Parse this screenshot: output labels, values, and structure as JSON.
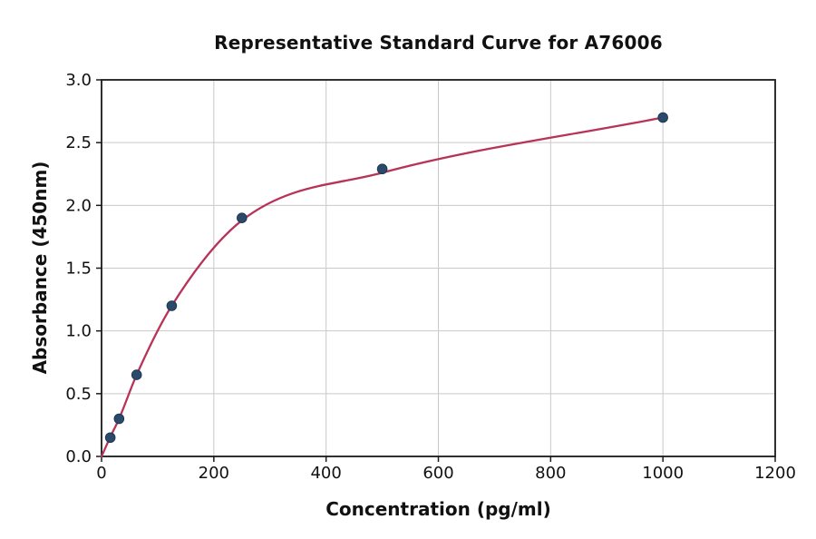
{
  "figure": {
    "background": "#ffffff"
  },
  "chart_data": {
    "type": "scatter",
    "title": "Representative Standard Curve for A76006",
    "xlabel": "Concentration (pg/ml)",
    "ylabel": "Absorbance (450nm)",
    "xlim": [
      0,
      1200
    ],
    "ylim": [
      0,
      3.0
    ],
    "xticks": {
      "values": [
        0,
        200,
        400,
        600,
        800,
        1000,
        1200
      ],
      "labels": [
        "0",
        "200",
        "400",
        "600",
        "800",
        "1000",
        "1200"
      ]
    },
    "yticks": {
      "values": [
        0,
        0.5,
        1.0,
        1.5,
        2.0,
        2.5,
        3.0
      ],
      "labels": [
        "0.0",
        "0.5",
        "1.0",
        "1.5",
        "2.0",
        "2.5",
        "3.0"
      ]
    },
    "grid": true,
    "legend": "none",
    "series": [
      {
        "name": "standard-points",
        "kind": "scatter",
        "x": [
          15.6,
          31.2,
          62.5,
          125,
          250,
          500,
          1000
        ],
        "y": [
          0.15,
          0.3,
          0.65,
          1.2,
          1.9,
          2.29,
          2.7
        ]
      },
      {
        "name": "fitted-curve",
        "kind": "line",
        "x": [
          0,
          15.6,
          31.2,
          62.5,
          125,
          250,
          500,
          1000
        ],
        "y": [
          0,
          0.155,
          0.3,
          0.65,
          1.2,
          1.88,
          2.26,
          2.7
        ]
      }
    ],
    "colors": {
      "curve": "#b73458",
      "marker": "#2b4a6b",
      "marker_edge": "#1e3852",
      "grid": "#c9c9c9",
      "spine": "#1a1a1a",
      "text": "#111111"
    }
  }
}
